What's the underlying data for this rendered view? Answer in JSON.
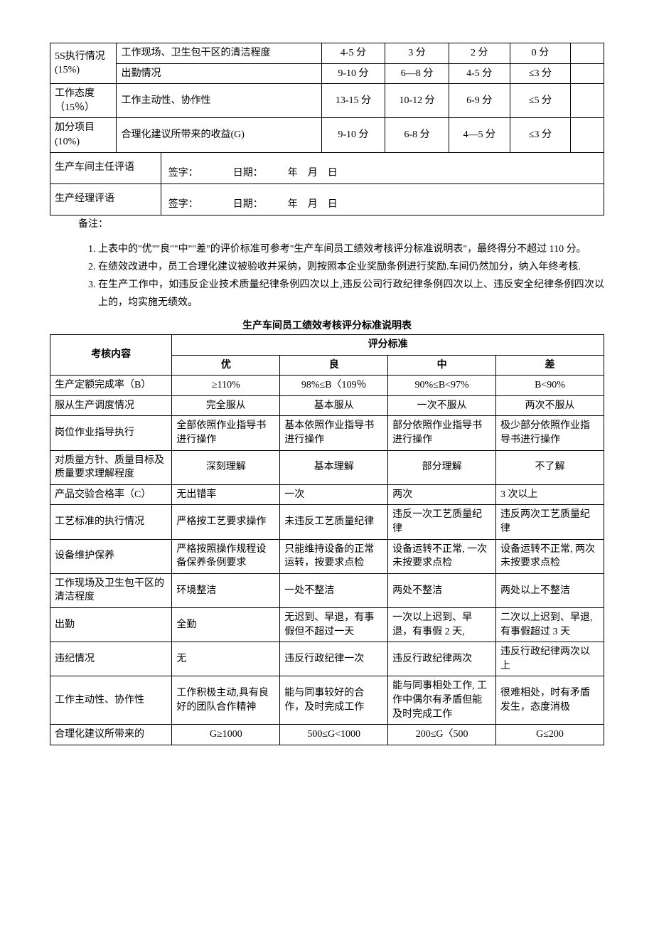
{
  "table1": {
    "rows": [
      {
        "cat": "5S执行情况(15%)",
        "items": [
          {
            "desc": "工作现场、卫生包干区的清洁程度",
            "a": "4-5 分",
            "b": "3 分",
            "c": "2 分",
            "d": "0 分"
          },
          {
            "desc": "出勤情况",
            "a": "9-10 分",
            "b": "6—8 分",
            "c": "4-5 分",
            "d": "≤3 分"
          }
        ]
      },
      {
        "cat": "工作态度（15％）",
        "items": [
          {
            "desc": "工作主动性、协作性",
            "a": "13-15 分",
            "b": "10-12 分",
            "c": "6-9 分",
            "d": "≤5 分"
          }
        ]
      },
      {
        "cat": "加分项目(10%)",
        "items": [
          {
            "desc": "合理化建议所带来的收益(G)",
            "a": "9-10 分",
            "b": "6-8 分",
            "c": "4—5 分",
            "d": "≤3 分"
          }
        ]
      }
    ],
    "sig1_label": "生产车间主任评语",
    "sig2_label": "生产经理评语",
    "sig_line": "签字：　　　　日期：　　　年　月　日"
  },
  "notes": {
    "title": "备注：",
    "items": [
      "上表中的\"优\"\"良\"\"中\"\"差\"的评价标准可参考\"生产车间员工绩效考核评分标准说明表\"，最终得分不超过 110 分。",
      "在绩效改进中，员工合理化建议被验收并采纳，则按照本企业奖励条例进行奖励.车间仍然加分，纳入年终考核.",
      "在生产工作中，如违反企业技术质量纪律条例四次以上,违反公司行政纪律条例四次以上、违反安全纪律条例四次以上的，均实施无绩效。"
    ]
  },
  "table2": {
    "title": "生产车间员工绩效考核评分标准说明表",
    "header": {
      "col1": "考核内容",
      "col2": "评分标准",
      "grades": [
        "优",
        "良",
        "中",
        "差"
      ]
    },
    "rows": [
      {
        "label": "生产定额完成率（B）",
        "a": "≥110%",
        "b": "98%≤B〈109％",
        "c": "90%≤B<97%",
        "d": "B<90%",
        "center": true
      },
      {
        "label": "服从生产调度情况",
        "a": "完全服从",
        "b": "基本服从",
        "c": "一次不服从",
        "d": "两次不服从",
        "center": true
      },
      {
        "label": "岗位作业指导执行",
        "a": "全部依照作业指导书进行操作",
        "b": "基本依照作业指导书进行操作",
        "c": "部分依照作业指导书进行操作",
        "d": "极少部分依照作业指导书进行操作"
      },
      {
        "label": "对质量方针、质量目标及质量要求理解程度",
        "a": "深刻理解",
        "b": "基本理解",
        "c": "部分理解",
        "d": "不了解",
        "center": true
      },
      {
        "label": "产品交验合格率（C）",
        "a": "无出错率",
        "b": "一次",
        "c": "两次",
        "d": "3 次以上"
      },
      {
        "label": "工艺标准的执行情况",
        "a": "严格按工艺要求操作",
        "b": "未违反工艺质量纪律",
        "c": "违反一次工艺质量纪律",
        "d": "违反两次工艺质量纪律"
      },
      {
        "label": "设备维护保养",
        "a": "严格按照操作规程设备保养条例要求",
        "b": "只能维持设备的正常运转，按要求点检",
        "c": "设备运转不正常, 一次未按要求点检",
        "d": "设备运转不正常, 两次未按要求点检"
      },
      {
        "label": "工作现场及卫生包干区的清洁程度",
        "a": "环境整洁",
        "b": "一处不整洁",
        "c": "两处不整洁",
        "d": "两处以上不整洁"
      },
      {
        "label": "出勤",
        "a": "全勤",
        "b": "无迟到、早退，有事假但不超过一天",
        "c": "一次以上迟到、早退，有事假 2 天,",
        "d": "二次以上迟到、早退,有事假超过 3 天"
      },
      {
        "label": "违纪情况",
        "a": "无",
        "b": "违反行政纪律一次",
        "c": "违反行政纪律两次",
        "d": "违反行政纪律两次以上"
      },
      {
        "label": "工作主动性、协作性",
        "a": "工作积极主动,具有良好的团队合作精神",
        "b": "能与同事较好的合作，及时完成工作",
        "c": "能与同事相处工作, 工作中偶尔有矛盾但能及时完成工作",
        "d": "很难相处，时有矛盾发生，态度消极"
      },
      {
        "label": "合理化建议所带来的",
        "a": "G≥1000",
        "b": "500≤G<1000",
        "c": "200≤G〈500",
        "d": "G≤200",
        "center": true
      }
    ]
  }
}
